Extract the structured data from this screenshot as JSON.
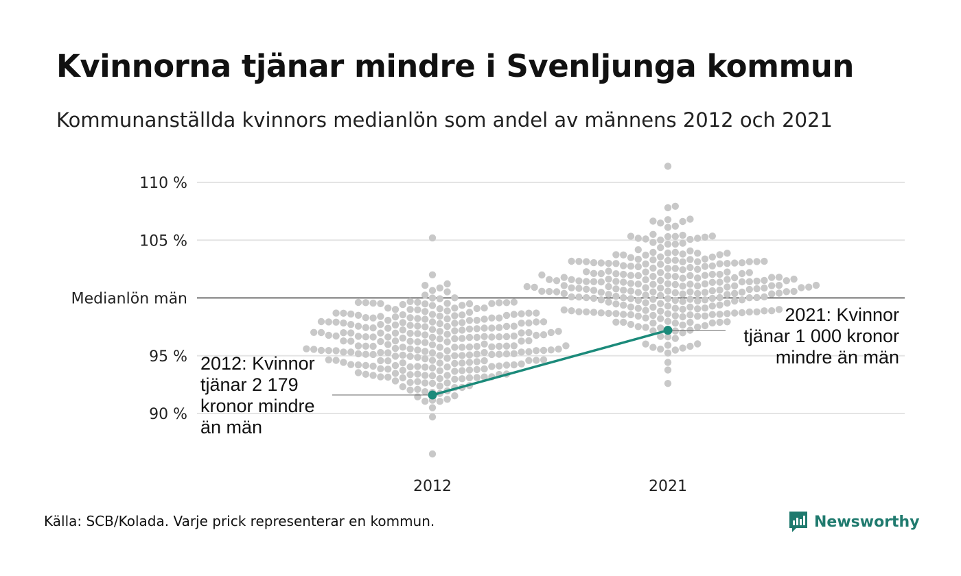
{
  "title": "Kvinnorna tjänar mindre i Svenljunga kommun",
  "subtitle": "Kommunanställda kvinnors medianlön som andel av männens 2012 och 2021",
  "source": "Källa: SCB/Kolada. Varje prick representerar en kommun.",
  "brand": "Newsworthy",
  "colors": {
    "dot": "#c8c8c8",
    "highlight": "#1b8a7a",
    "grid": "#e4e4e4",
    "reference_line": "#333333",
    "logo": "#1f7a6e"
  },
  "chart_data": {
    "type": "scatter",
    "categories": [
      "2012",
      "2021"
    ],
    "ylim": [
      86,
      111.5
    ],
    "yticks": [
      {
        "value": 90,
        "label": "90 %"
      },
      {
        "value": 95,
        "label": "95 %"
      },
      {
        "value": 100,
        "label": "Medianlön män"
      },
      {
        "value": 105,
        "label": "105 %"
      },
      {
        "value": 110,
        "label": "110 %"
      }
    ],
    "reference_value": 100,
    "grid": true,
    "highlight_series": {
      "values": [
        91.6,
        97.2
      ],
      "annotations": [
        "2012: Kvinnor tjänar 2 179 kronor mindre än män",
        "2021: Kvinnor tjänar 1 000 kronor mindre än män"
      ]
    },
    "distributions": [
      {
        "category": "2012",
        "min": 86.5,
        "max": 105.2,
        "center": 96.0,
        "spread": 2.4,
        "count": 290
      },
      {
        "category": "2021",
        "min": 92.6,
        "max": 111.4,
        "center": 101.0,
        "spread": 2.5,
        "count": 290
      }
    ]
  }
}
